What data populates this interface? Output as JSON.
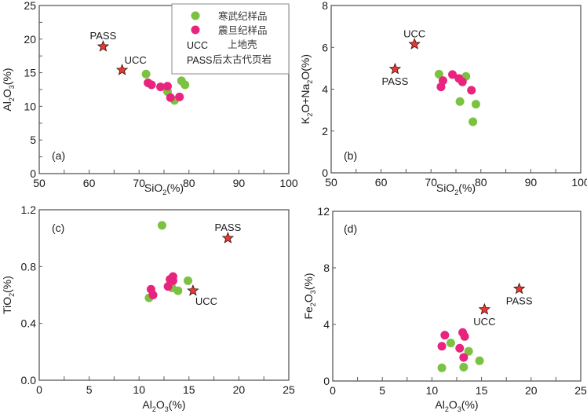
{
  "colors": {
    "cambrian": "#7cc242",
    "sinian": "#e8247f",
    "reference": "#e53a32",
    "axis": "#595959"
  },
  "legend": {
    "items": [
      {
        "marker": "green-dot",
        "key": "",
        "label": "寒武纪样品"
      },
      {
        "marker": "pink-dot",
        "key": "",
        "label": "震旦纪样品"
      },
      {
        "marker": "",
        "key": "UCC",
        "label": "上地壳"
      },
      {
        "marker": "",
        "key": "PASS",
        "label": "后太古代页岩"
      }
    ]
  },
  "chart_data": [
    {
      "type": "scatter",
      "panel": "(a)",
      "xlabel": {
        "main": "SiO",
        "sub": "2",
        "tail": "(%)"
      },
      "ylabel": {
        "parts": [
          [
            "Al",
            ""
          ],
          [
            "2",
            "sub"
          ],
          [
            "O",
            ""
          ],
          [
            "3",
            "sub"
          ],
          [
            "(%)",
            ""
          ]
        ]
      },
      "xlim": [
        50,
        100
      ],
      "ylim": [
        0,
        25
      ],
      "xticks": [
        50,
        60,
        70,
        80,
        90,
        100
      ],
      "yticks": [
        0,
        5,
        10,
        15,
        20,
        25
      ],
      "xminor": [
        55,
        65,
        75,
        85,
        95
      ],
      "yminor": [
        2.5,
        7.5,
        12.5,
        17.5,
        22.5
      ],
      "tick_format": 0,
      "series": [
        {
          "name": "寒武纪样品",
          "color_key": "cambrian",
          "points": [
            [
              71.4,
              14.8
            ],
            [
              75.7,
              12.2
            ],
            [
              77.1,
              10.9
            ],
            [
              78.5,
              13.8
            ],
            [
              79.2,
              13.2
            ]
          ]
        },
        {
          "name": "震旦纪样品",
          "color_key": "sinian",
          "points": [
            [
              71.8,
              13.5
            ],
            [
              72.5,
              13.2
            ],
            [
              74.3,
              12.9
            ],
            [
              75.7,
              13.0
            ],
            [
              76.3,
              11.3
            ],
            [
              78.1,
              11.4
            ]
          ]
        }
      ],
      "references": [
        {
          "name": "PASS",
          "x": 62.8,
          "y": 18.9,
          "label_pos": "above"
        },
        {
          "name": "UCC",
          "x": 66.6,
          "y": 15.4,
          "label_pos": "above-right"
        }
      ],
      "legend": "top-right"
    },
    {
      "type": "scatter",
      "panel": "(b)",
      "xlabel": {
        "main": "SiO",
        "sub": "2",
        "tail": "(%)"
      },
      "ylabel": {
        "parts": [
          [
            "K",
            ""
          ],
          [
            "2",
            "sub"
          ],
          [
            "O+Na",
            ""
          ],
          [
            "2",
            "sub"
          ],
          [
            "O(%)",
            ""
          ]
        ]
      },
      "xlim": [
        50,
        100
      ],
      "ylim": [
        0,
        8
      ],
      "xticks": [
        50,
        60,
        70,
        80,
        90,
        100
      ],
      "yticks": [
        0,
        2,
        4,
        6,
        8
      ],
      "xminor": [
        55,
        65,
        75,
        85,
        95
      ],
      "yminor": [],
      "tick_format": 0,
      "series": [
        {
          "name": "寒武纪样品",
          "color_key": "cambrian",
          "points": [
            [
              71.6,
              4.72
            ],
            [
              77.0,
              4.61
            ],
            [
              75.8,
              3.41
            ],
            [
              79.0,
              3.28
            ],
            [
              78.4,
              2.44
            ]
          ]
        },
        {
          "name": "震旦纪样品",
          "color_key": "sinian",
          "points": [
            [
              72.4,
              4.41
            ],
            [
              72.0,
              4.11
            ],
            [
              74.3,
              4.7
            ],
            [
              75.6,
              4.51
            ],
            [
              76.3,
              4.35
            ],
            [
              78.1,
              3.95
            ]
          ]
        }
      ],
      "references": [
        {
          "name": "UCC",
          "x": 66.7,
          "y": 6.15,
          "label_pos": "above"
        },
        {
          "name": "PASS",
          "x": 62.8,
          "y": 4.96,
          "label_pos": "below"
        }
      ]
    },
    {
      "type": "scatter",
      "panel": "(c)",
      "xlabel": {
        "main": "Al",
        "sub": "2",
        "tail": "O",
        "sub2": "3",
        "tail2": "(%)"
      },
      "ylabel": {
        "parts": [
          [
            "TiO",
            ""
          ],
          [
            "2",
            "sub"
          ],
          [
            "(%)",
            ""
          ]
        ]
      },
      "xlim": [
        0,
        25
      ],
      "ylim": [
        0,
        1.2
      ],
      "xticks": [
        0,
        5,
        10,
        15,
        20,
        25
      ],
      "yticks": [
        0.0,
        0.4,
        0.8,
        1.2
      ],
      "xminor": [
        2.5,
        7.5,
        12.5,
        17.5,
        22.5
      ],
      "yminor": [],
      "tick_format": 1,
      "series": [
        {
          "name": "寒武纪样品",
          "color_key": "cambrian",
          "points": [
            [
              12.3,
              1.09
            ],
            [
              11.0,
              0.58
            ],
            [
              13.3,
              0.65
            ],
            [
              13.9,
              0.63
            ],
            [
              14.9,
              0.7
            ]
          ]
        },
        {
          "name": "震旦纪样品",
          "color_key": "sinian",
          "points": [
            [
              11.2,
              0.64
            ],
            [
              11.4,
              0.6
            ],
            [
              12.9,
              0.66
            ],
            [
              13.1,
              0.71
            ],
            [
              13.4,
              0.73
            ],
            [
              13.4,
              0.7
            ]
          ]
        }
      ],
      "references": [
        {
          "name": "PASS",
          "x": 18.9,
          "y": 1.0,
          "label_pos": "above"
        },
        {
          "name": "UCC",
          "x": 15.4,
          "y": 0.63,
          "label_pos": "below-right"
        }
      ]
    },
    {
      "type": "scatter",
      "panel": "(d)",
      "xlabel": {
        "main": "Al",
        "sub": "2",
        "tail": "O",
        "sub2": "3",
        "tail2": "(%)"
      },
      "ylabel": {
        "parts": [
          [
            "Fe",
            ""
          ],
          [
            "2",
            "sub"
          ],
          [
            "O",
            ""
          ],
          [
            "3",
            "sub"
          ],
          [
            "(%)",
            ""
          ]
        ]
      },
      "xlim": [
        0,
        25
      ],
      "ylim": [
        0,
        12
      ],
      "xticks": [
        0,
        5,
        10,
        15,
        20,
        25
      ],
      "yticks": [
        0,
        4,
        8,
        12
      ],
      "xminor": [
        2.5,
        7.5,
        12.5,
        17.5,
        22.5
      ],
      "yminor": [],
      "tick_format": 0,
      "series": [
        {
          "name": "寒武纪样品",
          "color_key": "cambrian",
          "points": [
            [
              11.9,
              2.69
            ],
            [
              13.7,
              2.1
            ],
            [
              14.8,
              1.43
            ],
            [
              11.0,
              0.93
            ],
            [
              13.2,
              0.98
            ]
          ]
        },
        {
          "name": "震旦纪样品",
          "color_key": "sinian",
          "points": [
            [
              11.3,
              3.24
            ],
            [
              11.0,
              2.46
            ],
            [
              13.1,
              3.43
            ],
            [
              13.3,
              3.15
            ],
            [
              12.8,
              2.32
            ],
            [
              13.2,
              1.67
            ]
          ]
        }
      ],
      "references": [
        {
          "name": "UCC",
          "x": 15.3,
          "y": 5.06,
          "label_pos": "below"
        },
        {
          "name": "PASS",
          "x": 18.8,
          "y": 6.52,
          "label_pos": "below"
        }
      ]
    }
  ]
}
